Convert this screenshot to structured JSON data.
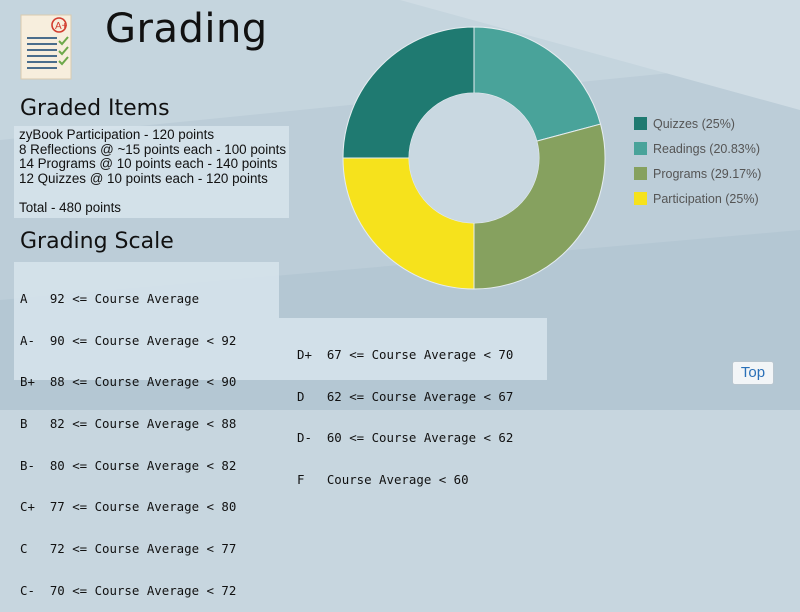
{
  "page": {
    "title": "Grading"
  },
  "graded_items": {
    "heading": "Graded Items",
    "items": [
      "zyBook Participation - 120 points",
      "8 Reflections @ ~15 points each - 100 points",
      "14 Programs @ 10 points each - 140 points",
      "12 Quizzes @ 10 points each - 120 points"
    ],
    "total": "Total - 480 points"
  },
  "grading_scale": {
    "heading": "Grading Scale",
    "left_column": [
      "A   92 <= Course Average",
      "A-  90 <= Course Average < 92",
      "B+  88 <= Course Average < 90",
      "B   82 <= Course Average < 88",
      "B-  80 <= Course Average < 82",
      "C+  77 <= Course Average < 80",
      "C   72 <= Course Average < 77",
      "C-  70 <= Course Average < 72"
    ],
    "right_column": [
      "D+  67 <= Course Average < 70",
      "D   62 <= Course Average < 67",
      "D-  60 <= Course Average < 62",
      "F   Course Average < 60"
    ]
  },
  "chart_data": {
    "type": "pie",
    "donut": true,
    "categories": [
      "Quizzes",
      "Readings",
      "Programs",
      "Participation"
    ],
    "values": [
      25,
      20.83,
      29.17,
      25
    ],
    "labels": [
      "Quizzes (25%)",
      "Readings (20.83%)",
      "Programs (29.17%)",
      "Participation (25%)"
    ],
    "colors": [
      "#1f7a71",
      "#49a39a",
      "#86a15f",
      "#f6e21c"
    ],
    "legend_position": "right"
  },
  "top_button": {
    "label": "Top"
  }
}
